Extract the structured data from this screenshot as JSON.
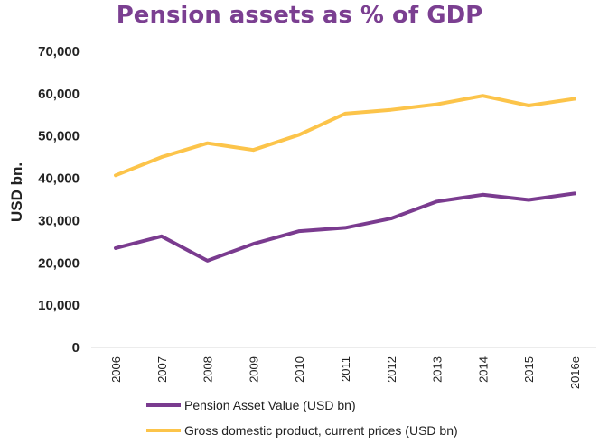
{
  "chart_data": {
    "type": "line",
    "title": "Pension assets as % of GDP",
    "xlabel": "",
    "ylabel": "USD bn.",
    "categories": [
      "2006",
      "2007",
      "2008",
      "2009",
      "2010",
      "2011",
      "2012",
      "2013",
      "2014",
      "2015",
      "2016e"
    ],
    "ylim": [
      0,
      70000
    ],
    "yticks": [
      0,
      10000,
      20000,
      30000,
      40000,
      50000,
      60000,
      70000
    ],
    "ytick_labels": [
      "0",
      "10,000",
      "20,000",
      "30,000",
      "40,000",
      "50,000",
      "60,000",
      "70,000"
    ],
    "grid": false,
    "legend_position": "bottom",
    "series": [
      {
        "name": "Pension Asset Value (USD bn)",
        "color": "#7a3b8f",
        "values": [
          23500,
          26300,
          20500,
          24500,
          27500,
          28300,
          30500,
          34500,
          36100,
          34900,
          36400
        ]
      },
      {
        "name": "Gross domestic product, current prices (USD bn)",
        "color": "#fcc44a",
        "values": [
          40700,
          45000,
          48300,
          46700,
          50300,
          55300,
          56200,
          57500,
          59500,
          57200,
          58800
        ]
      }
    ],
    "title_color": "#7b3f91"
  }
}
